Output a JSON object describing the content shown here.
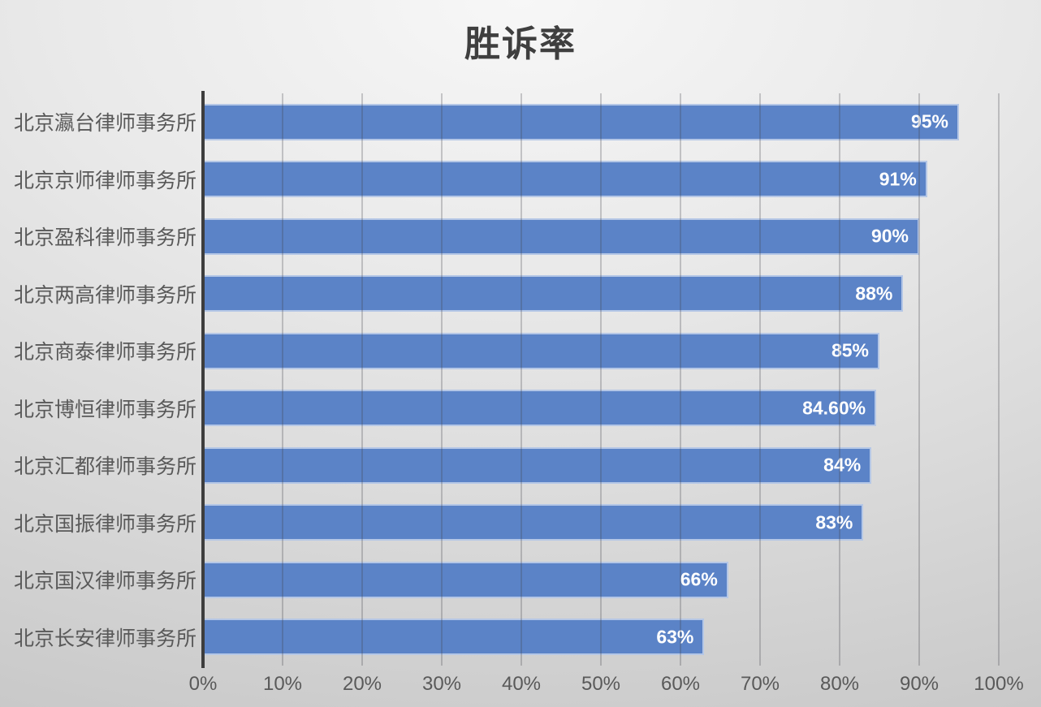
{
  "chart_data": {
    "type": "bar",
    "orientation": "horizontal",
    "title": "胜诉率",
    "xlabel": "",
    "ylabel": "",
    "categories": [
      "北京瀛台律师事务所",
      "北京京师律师事务所",
      "北京盈科律师事务所",
      "北京两高律师事务所",
      "北京商泰律师事务所",
      "北京博恒律师事务所",
      "北京汇都律师事务所",
      "北京国振律师事务所",
      "北京国汉律师事务所",
      "北京长安律师事务所"
    ],
    "values": [
      95,
      91,
      90,
      88,
      85,
      84.6,
      84,
      83,
      66,
      63
    ],
    "value_labels": [
      "95%",
      "91%",
      "90%",
      "88%",
      "85%",
      "84.60%",
      "84%",
      "83%",
      "66%",
      "63%"
    ],
    "xlim": [
      0,
      100
    ],
    "x_ticks": [
      "0%",
      "10%",
      "20%",
      "30%",
      "40%",
      "50%",
      "60%",
      "70%",
      "80%",
      "90%",
      "100%"
    ],
    "grid": true,
    "gridlines": "vertical",
    "legend": false
  },
  "colors": {
    "bar_fill": "#5b83c7",
    "bar_border": "rgba(255,255,255,0.55)",
    "data_label": "#ffffff",
    "title_text": "#3f3f3f",
    "axis_text": "#595959",
    "axis_line": "#3d3d3d",
    "gridline": "rgba(64,64,72,0.26)"
  }
}
